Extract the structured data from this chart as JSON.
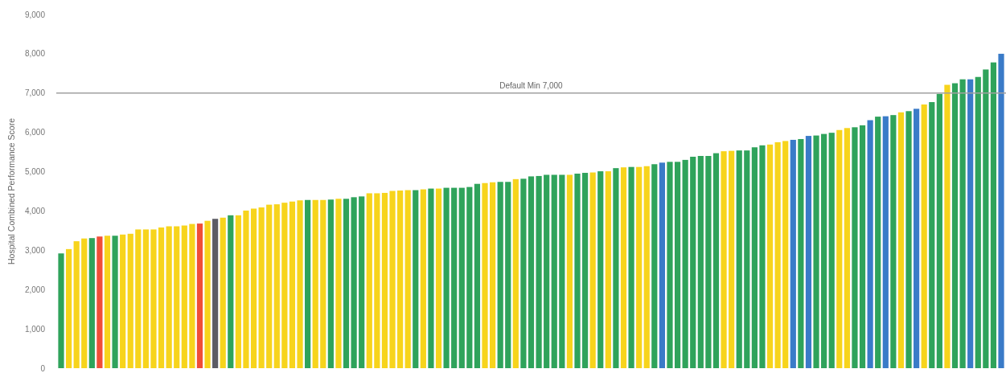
{
  "chart_data": {
    "type": "bar",
    "ylabel": "Hospital Combined Performance Score",
    "categories": [
      null,
      null,
      null,
      null,
      null,
      null,
      null,
      null,
      null,
      null,
      null,
      null,
      null,
      null,
      null,
      null,
      null,
      null,
      null,
      null,
      null,
      null,
      null,
      null,
      null,
      null,
      null,
      null,
      null,
      null,
      null,
      null,
      null,
      null,
      null,
      null,
      null,
      null,
      null,
      null,
      null,
      null,
      null,
      null,
      null,
      null,
      null,
      null,
      null,
      null,
      null,
      null,
      null,
      null,
      null,
      null,
      null,
      null,
      null,
      null,
      null,
      null,
      null,
      null,
      null,
      null,
      null,
      null,
      null,
      null,
      null,
      null,
      null,
      null,
      null,
      null,
      null,
      null,
      null,
      null,
      null,
      null,
      null,
      null,
      null,
      null,
      null,
      null,
      null,
      null,
      null,
      null,
      null,
      null,
      null,
      null,
      null,
      null,
      null,
      null,
      null,
      null,
      null,
      null,
      null,
      null,
      null,
      null,
      null,
      null,
      null,
      null,
      null,
      null,
      null,
      null,
      null,
      null,
      null,
      null,
      null,
      null,
      null
    ],
    "values": [
      2920,
      3030,
      3230,
      3300,
      3310,
      3350,
      3370,
      3370,
      3400,
      3420,
      3530,
      3530,
      3530,
      3580,
      3610,
      3610,
      3630,
      3670,
      3680,
      3750,
      3800,
      3830,
      3890,
      3890,
      4010,
      4060,
      4090,
      4160,
      4170,
      4210,
      4240,
      4270,
      4280,
      4280,
      4280,
      4290,
      4310,
      4310,
      4350,
      4370,
      4450,
      4450,
      4460,
      4510,
      4520,
      4530,
      4530,
      4550,
      4570,
      4570,
      4590,
      4590,
      4590,
      4610,
      4690,
      4710,
      4730,
      4740,
      4740,
      4810,
      4820,
      4880,
      4890,
      4920,
      4920,
      4920,
      4920,
      4950,
      4970,
      4980,
      5010,
      5010,
      5090,
      5110,
      5120,
      5120,
      5140,
      5190,
      5230,
      5250,
      5250,
      5300,
      5380,
      5400,
      5400,
      5470,
      5520,
      5530,
      5540,
      5540,
      5620,
      5670,
      5690,
      5750,
      5780,
      5810,
      5830,
      5910,
      5920,
      5960,
      5990,
      6060,
      6110,
      6130,
      6180,
      6310,
      6400,
      6410,
      6440,
      6510,
      6540,
      6600,
      6710,
      6770,
      6980,
      7210,
      7250,
      7350,
      7350,
      7410,
      7600,
      7780,
      8000
    ],
    "colors": [
      "#2fa35b",
      "#f7d41c",
      "#f7d41c",
      "#f7d41c",
      "#2fa35b",
      "#f04e37",
      "#f7d41c",
      "#2fa35b",
      "#f7d41c",
      "#f7d41c",
      "#f7d41c",
      "#f7d41c",
      "#f7d41c",
      "#f7d41c",
      "#f7d41c",
      "#f7d41c",
      "#f7d41c",
      "#f7d41c",
      "#f04e37",
      "#f7d41c",
      "#5c5c64",
      "#f7d41c",
      "#2fa35b",
      "#f7d41c",
      "#f7d41c",
      "#f7d41c",
      "#f7d41c",
      "#f7d41c",
      "#f7d41c",
      "#f7d41c",
      "#f7d41c",
      "#f7d41c",
      "#2fa35b",
      "#f7d41c",
      "#f7d41c",
      "#2fa35b",
      "#f7d41c",
      "#2fa35b",
      "#2fa35b",
      "#2fa35b",
      "#f7d41c",
      "#f7d41c",
      "#f7d41c",
      "#f7d41c",
      "#f7d41c",
      "#f7d41c",
      "#2fa35b",
      "#f7d41c",
      "#2fa35b",
      "#f7d41c",
      "#2fa35b",
      "#2fa35b",
      "#2fa35b",
      "#2fa35b",
      "#2fa35b",
      "#f7d41c",
      "#f7d41c",
      "#2fa35b",
      "#2fa35b",
      "#f7d41c",
      "#2fa35b",
      "#2fa35b",
      "#2fa35b",
      "#2fa35b",
      "#2fa35b",
      "#2fa35b",
      "#f7d41c",
      "#2fa35b",
      "#2fa35b",
      "#f7d41c",
      "#2fa35b",
      "#f7d41c",
      "#2fa35b",
      "#f7d41c",
      "#2fa35b",
      "#f7d41c",
      "#f7d41c",
      "#2fa35b",
      "#3a7bc8",
      "#2fa35b",
      "#2fa35b",
      "#2fa35b",
      "#2fa35b",
      "#2fa35b",
      "#2fa35b",
      "#2fa35b",
      "#f7d41c",
      "#f7d41c",
      "#2fa35b",
      "#2fa35b",
      "#2fa35b",
      "#2fa35b",
      "#f7d41c",
      "#f7d41c",
      "#f7d41c",
      "#3a7bc8",
      "#2fa35b",
      "#3a7bc8",
      "#2fa35b",
      "#2fa35b",
      "#2fa35b",
      "#f7d41c",
      "#f7d41c",
      "#2fa35b",
      "#2fa35b",
      "#3a7bc8",
      "#2fa35b",
      "#3a7bc8",
      "#2fa35b",
      "#f7d41c",
      "#2fa35b",
      "#3a7bc8",
      "#f7d41c",
      "#2fa35b",
      "#2fa35b",
      "#f7d41c",
      "#2fa35b",
      "#2fa35b",
      "#3a7bc8",
      "#2fa35b",
      "#2fa35b",
      "#2fa35b",
      "#3a7bc8"
    ],
    "ylim": [
      0,
      9000
    ],
    "yticks": [
      0,
      {
        "value": 1000,
        "label": "1,000"
      },
      {
        "value": 2000,
        "label": "2,000"
      },
      {
        "value": 3000,
        "label": "3,000"
      },
      {
        "value": 4000,
        "label": "4,000"
      },
      {
        "value": 5000,
        "label": "5,000"
      },
      {
        "value": 6000,
        "label": "6,000"
      },
      {
        "value": 7000,
        "label": "7,000"
      },
      {
        "value": 8000,
        "label": "8,000"
      },
      {
        "value": 9000,
        "label": "9,000"
      }
    ],
    "ref_lines": [
      {
        "axis": "y",
        "value": 7000,
        "label": "Default Min 7,000",
        "color": "#a0a0a0"
      }
    ]
  }
}
